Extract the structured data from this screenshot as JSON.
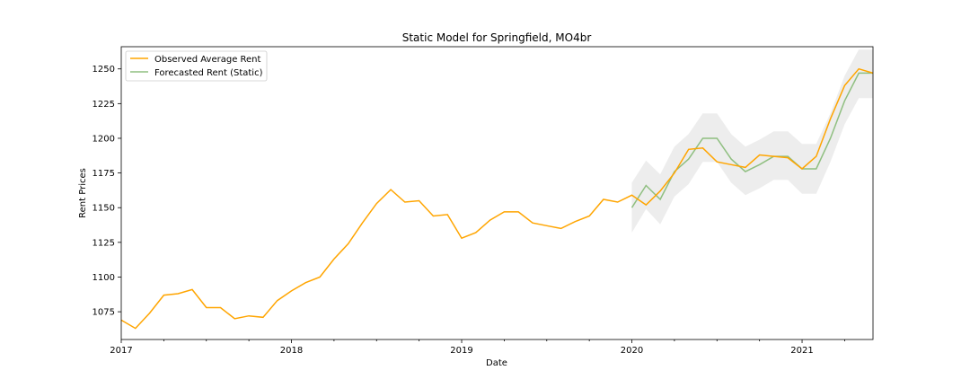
{
  "chart_data": {
    "type": "line",
    "title": "Static Model for Springfield, MO4br",
    "xlabel": "Date",
    "ylabel": "Rent Prices",
    "x_range": [
      "2017-01",
      "2021-06"
    ],
    "ylim": [
      1055,
      1266
    ],
    "x_ticks": [
      {
        "label": "2017",
        "date": "2017-01"
      },
      {
        "label": "2018",
        "date": "2018-01"
      },
      {
        "label": "2019",
        "date": "2019-01"
      },
      {
        "label": "2020",
        "date": "2020-01"
      },
      {
        "label": "2021",
        "date": "2021-01"
      }
    ],
    "y_ticks": [
      1075,
      1100,
      1125,
      1150,
      1175,
      1200,
      1225,
      1250
    ],
    "legend_position": "top-left",
    "series": [
      {
        "name": "Observed Average Rent",
        "color": "#ffa500",
        "x": [
          "2017-01",
          "2017-02",
          "2017-03",
          "2017-04",
          "2017-05",
          "2017-06",
          "2017-07",
          "2017-08",
          "2017-09",
          "2017-10",
          "2017-11",
          "2017-12",
          "2018-01",
          "2018-02",
          "2018-03",
          "2018-04",
          "2018-05",
          "2018-06",
          "2018-07",
          "2018-08",
          "2018-09",
          "2018-10",
          "2018-11",
          "2018-12",
          "2019-01",
          "2019-02",
          "2019-03",
          "2019-04",
          "2019-05",
          "2019-06",
          "2019-07",
          "2019-08",
          "2019-09",
          "2019-10",
          "2019-11",
          "2019-12",
          "2020-01",
          "2020-02",
          "2020-03",
          "2020-04",
          "2020-05",
          "2020-06",
          "2020-07",
          "2020-08",
          "2020-09",
          "2020-10",
          "2020-11",
          "2020-12",
          "2021-01",
          "2021-02",
          "2021-03",
          "2021-04",
          "2021-05",
          "2021-06"
        ],
        "values": [
          1069,
          1063,
          1074,
          1087,
          1088,
          1091,
          1078,
          1078,
          1070,
          1072,
          1071,
          1083,
          1090,
          1096,
          1100,
          1113,
          1124,
          1139,
          1153,
          1163,
          1154,
          1155,
          1144,
          1145,
          1128,
          1132,
          1141,
          1147,
          1147,
          1139,
          1137,
          1135,
          1140,
          1144,
          1156,
          1154,
          1159,
          1152,
          1162,
          1175,
          1192,
          1193,
          1183,
          1181,
          1179,
          1188,
          1187,
          1186,
          1178,
          1187,
          1214,
          1238,
          1250,
          1247
        ]
      },
      {
        "name": "Forecasted Rent (Static)",
        "color": "#8fbf80",
        "x": [
          "2020-01",
          "2020-02",
          "2020-03",
          "2020-04",
          "2020-05",
          "2020-06",
          "2020-07",
          "2020-08",
          "2020-09",
          "2020-10",
          "2020-11",
          "2020-12",
          "2021-01",
          "2021-02",
          "2021-03",
          "2021-04",
          "2021-05",
          "2021-06"
        ],
        "values": [
          1150,
          1166,
          1156,
          1176,
          1185,
          1200,
          1200,
          1185,
          1176,
          1181,
          1187,
          1187,
          1178,
          1178,
          1200,
          1227,
          1247,
          1247
        ],
        "ci_lower": [
          1132,
          1149,
          1138,
          1158,
          1167,
          1183,
          1183,
          1168,
          1159,
          1164,
          1170,
          1170,
          1160,
          1160,
          1183,
          1210,
          1229,
          1229
        ],
        "ci_upper": [
          1168,
          1184,
          1174,
          1194,
          1203,
          1218,
          1218,
          1203,
          1194,
          1199,
          1205,
          1205,
          1196,
          1196,
          1218,
          1245,
          1264,
          1264
        ]
      }
    ],
    "ci_color": "#d8d8d8"
  }
}
